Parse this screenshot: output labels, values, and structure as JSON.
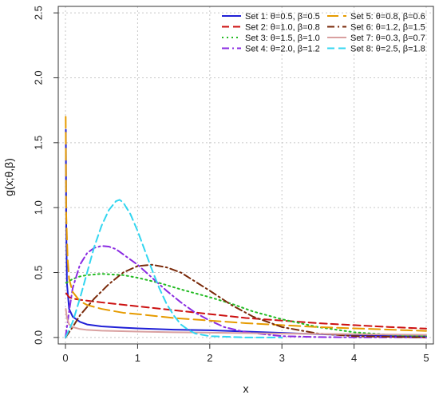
{
  "chart_data": {
    "type": "line",
    "title": "",
    "xlabel": "x",
    "ylabel": "g(x;θ,β)",
    "xlim": [
      -0.1,
      5.1
    ],
    "ylim": [
      -0.05,
      2.55
    ],
    "xticks": [
      0,
      1,
      2,
      3,
      4,
      5
    ],
    "yticks": [
      0.0,
      0.5,
      1.0,
      1.5,
      2.0,
      2.5
    ],
    "xtick_labels": [
      "0",
      "1",
      "2",
      "3",
      "4",
      "5"
    ],
    "ytick_labels": [
      "0.0",
      "0.5",
      "1.0",
      "1.5",
      "2.0",
      "2.5"
    ],
    "grid": true,
    "legend_position": "top-right",
    "series": [
      {
        "name": "Set 1: θ=0.5, β=0.5",
        "color": "#1f1fd6",
        "dash": "solid",
        "x": [
          0.005,
          0.01,
          0.02,
          0.05,
          0.1,
          0.2,
          0.3,
          0.5,
          0.8,
          1.0,
          1.5,
          2.0,
          2.5,
          3.0,
          3.5,
          4.0,
          4.5,
          5.0
        ],
        "y": [
          1.6,
          0.9,
          0.42,
          0.22,
          0.16,
          0.12,
          0.1,
          0.085,
          0.075,
          0.07,
          0.06,
          0.055,
          0.045,
          0.035,
          0.025,
          0.018,
          0.012,
          0.008
        ]
      },
      {
        "name": "Set 2: θ=1.0, β=0.8",
        "color": "#cc1111",
        "dash": "dashed",
        "x": [
          0.01,
          0.05,
          0.1,
          0.2,
          0.5,
          1.0,
          1.5,
          2.0,
          2.5,
          3.0,
          3.5,
          4.0,
          4.5,
          5.0
        ],
        "y": [
          0.34,
          0.31,
          0.3,
          0.29,
          0.27,
          0.24,
          0.21,
          0.18,
          0.15,
          0.13,
          0.11,
          0.095,
          0.08,
          0.068
        ]
      },
      {
        "name": "Set 3: θ=1.5, β=1.0",
        "color": "#22bb22",
        "dash": "dotted",
        "x": [
          0.01,
          0.1,
          0.2,
          0.3,
          0.5,
          0.8,
          1.0,
          1.3,
          1.6,
          2.0,
          2.3,
          2.6,
          3.0,
          3.5,
          4.0,
          4.5,
          5.0
        ],
        "y": [
          0.42,
          0.45,
          0.47,
          0.48,
          0.49,
          0.48,
          0.46,
          0.42,
          0.37,
          0.31,
          0.26,
          0.2,
          0.14,
          0.08,
          0.04,
          0.02,
          0.01
        ]
      },
      {
        "name": "Set 4: θ=2.0, β=1.2",
        "color": "#8a2be2",
        "dash": "dashdot",
        "x": [
          0.0,
          0.05,
          0.1,
          0.2,
          0.3,
          0.4,
          0.5,
          0.6,
          0.7,
          0.8,
          1.0,
          1.2,
          1.4,
          1.6,
          1.8,
          2.0,
          2.2,
          2.5,
          3.0,
          3.5,
          4.0,
          5.0
        ],
        "y": [
          0.0,
          0.2,
          0.38,
          0.56,
          0.65,
          0.69,
          0.705,
          0.7,
          0.68,
          0.64,
          0.56,
          0.46,
          0.36,
          0.27,
          0.19,
          0.13,
          0.08,
          0.04,
          0.01,
          0.003,
          0.001,
          0.0
        ]
      },
      {
        "name": "Set 5: θ=0.8, β=0.6",
        "color": "#e69b00",
        "dash": "longdash",
        "x": [
          0.003,
          0.01,
          0.03,
          0.05,
          0.1,
          0.2,
          0.3,
          0.5,
          0.8,
          1.0,
          1.5,
          2.0,
          2.5,
          3.0,
          3.5,
          4.0,
          4.5,
          5.0
        ],
        "y": [
          1.7,
          0.95,
          0.6,
          0.45,
          0.35,
          0.28,
          0.25,
          0.22,
          0.19,
          0.18,
          0.15,
          0.13,
          0.11,
          0.095,
          0.08,
          0.07,
          0.06,
          0.05
        ]
      },
      {
        "name": "Set 6: θ=1.2, β=1.5",
        "color": "#7a2a0a",
        "dash": "dashdot",
        "x": [
          0.0,
          0.1,
          0.2,
          0.4,
          0.6,
          0.8,
          1.0,
          1.2,
          1.4,
          1.6,
          1.8,
          2.0,
          2.3,
          2.6,
          3.0,
          3.5,
          4.0,
          5.0
        ],
        "y": [
          0.0,
          0.08,
          0.17,
          0.3,
          0.41,
          0.5,
          0.55,
          0.56,
          0.54,
          0.5,
          0.43,
          0.36,
          0.25,
          0.16,
          0.08,
          0.03,
          0.01,
          0.0
        ]
      },
      {
        "name": "Set 7: θ=0.3, β=0.7",
        "color": "#d9a0a0",
        "dash": "solid",
        "x": [
          0.005,
          0.02,
          0.05,
          0.1,
          0.2,
          0.3,
          0.5,
          1.0,
          1.5,
          2.0,
          3.0,
          4.0,
          5.0
        ],
        "y": [
          0.22,
          0.15,
          0.1,
          0.08,
          0.065,
          0.058,
          0.052,
          0.045,
          0.04,
          0.037,
          0.03,
          0.025,
          0.02
        ]
      },
      {
        "name": "Set 8: θ=2.5, β=1.8",
        "color": "#33d6f0",
        "dash": "dashed",
        "x": [
          0.0,
          0.1,
          0.2,
          0.3,
          0.4,
          0.5,
          0.6,
          0.7,
          0.75,
          0.8,
          0.9,
          1.0,
          1.1,
          1.2,
          1.3,
          1.4,
          1.5,
          1.6,
          1.7,
          1.8,
          2.0,
          2.5,
          3.0
        ],
        "y": [
          0.0,
          0.12,
          0.3,
          0.5,
          0.7,
          0.86,
          0.98,
          1.05,
          1.06,
          1.04,
          0.95,
          0.82,
          0.67,
          0.52,
          0.38,
          0.26,
          0.17,
          0.1,
          0.06,
          0.03,
          0.01,
          0.0,
          0.0
        ]
      }
    ]
  }
}
